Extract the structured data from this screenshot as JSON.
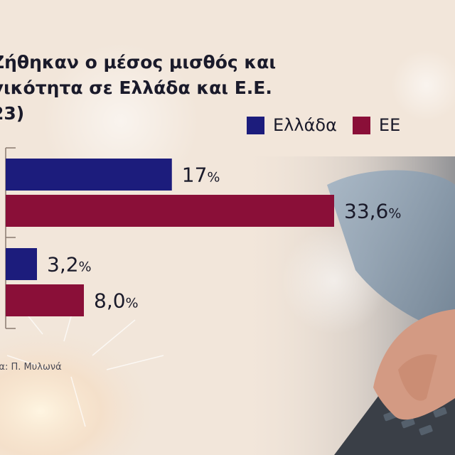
{
  "header": {
    "title_lines": [
      "Ζήθηκαν ο μέσος μισθός και",
      "γικότητα σε Ελλάδα και Ε.Ε.",
      "23)"
    ]
  },
  "legend": [
    {
      "label": "Ελλάδα",
      "color": "#1c1c7c"
    },
    {
      "label": "ΕΕ",
      "color": "#8a0f38"
    }
  ],
  "source": "ια: Π. Μυλωνά",
  "colors": {
    "greece": "#1c1c7c",
    "eu": "#8a0f38",
    "axis": "#8a7a70",
    "value_text": "#1a1a2a"
  },
  "chart_data": {
    "type": "bar",
    "orientation": "horizontal",
    "categories": [
      "",
      ""
    ],
    "series": [
      {
        "name": "Ελλάδα",
        "values": [
          17,
          3.2
        ],
        "labels": [
          "17",
          "3,2"
        ]
      },
      {
        "name": "ΕΕ",
        "values": [
          33.6,
          8.0
        ],
        "labels": [
          "33,6",
          "8,0"
        ]
      }
    ],
    "value_suffix": "%",
    "xlim": [
      0,
      40
    ],
    "grid": false,
    "legend_position": "top-right"
  }
}
